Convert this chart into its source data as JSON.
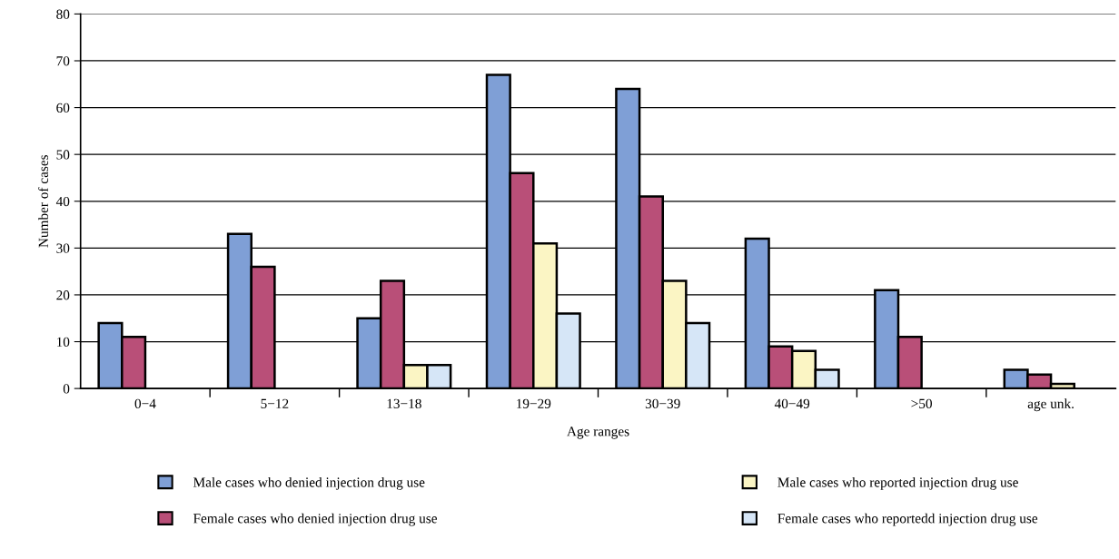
{
  "chart_data": {
    "type": "bar",
    "xlabel": "Age ranges",
    "ylabel": "Number of cases",
    "categories": [
      "0−4",
      "5−12",
      "13−18",
      "19−29",
      "30−39",
      "40−49",
      ">50",
      "age unk."
    ],
    "series": [
      {
        "name": "Male cases who denied injection drug use",
        "color": "#7f9fd6",
        "values": [
          14,
          33,
          15,
          67,
          64,
          32,
          21,
          4
        ]
      },
      {
        "name": "Female cases who denied injection drug use",
        "color": "#b94f78",
        "values": [
          11,
          26,
          23,
          46,
          41,
          9,
          11,
          3
        ]
      },
      {
        "name": "Male cases who reported injection drug use",
        "color": "#fbf5c4",
        "values": [
          null,
          null,
          5,
          31,
          23,
          8,
          null,
          1
        ]
      },
      {
        "name": "Female cases who reportedd injection drug use",
        "color": "#d6e6f7",
        "values": [
          null,
          null,
          5,
          16,
          14,
          4,
          null,
          null
        ]
      }
    ],
    "ylim": [
      0,
      80
    ],
    "yticks": [
      0,
      10,
      20,
      30,
      40,
      50,
      60,
      70,
      80
    ],
    "grid": "y",
    "legend": "bottom"
  }
}
